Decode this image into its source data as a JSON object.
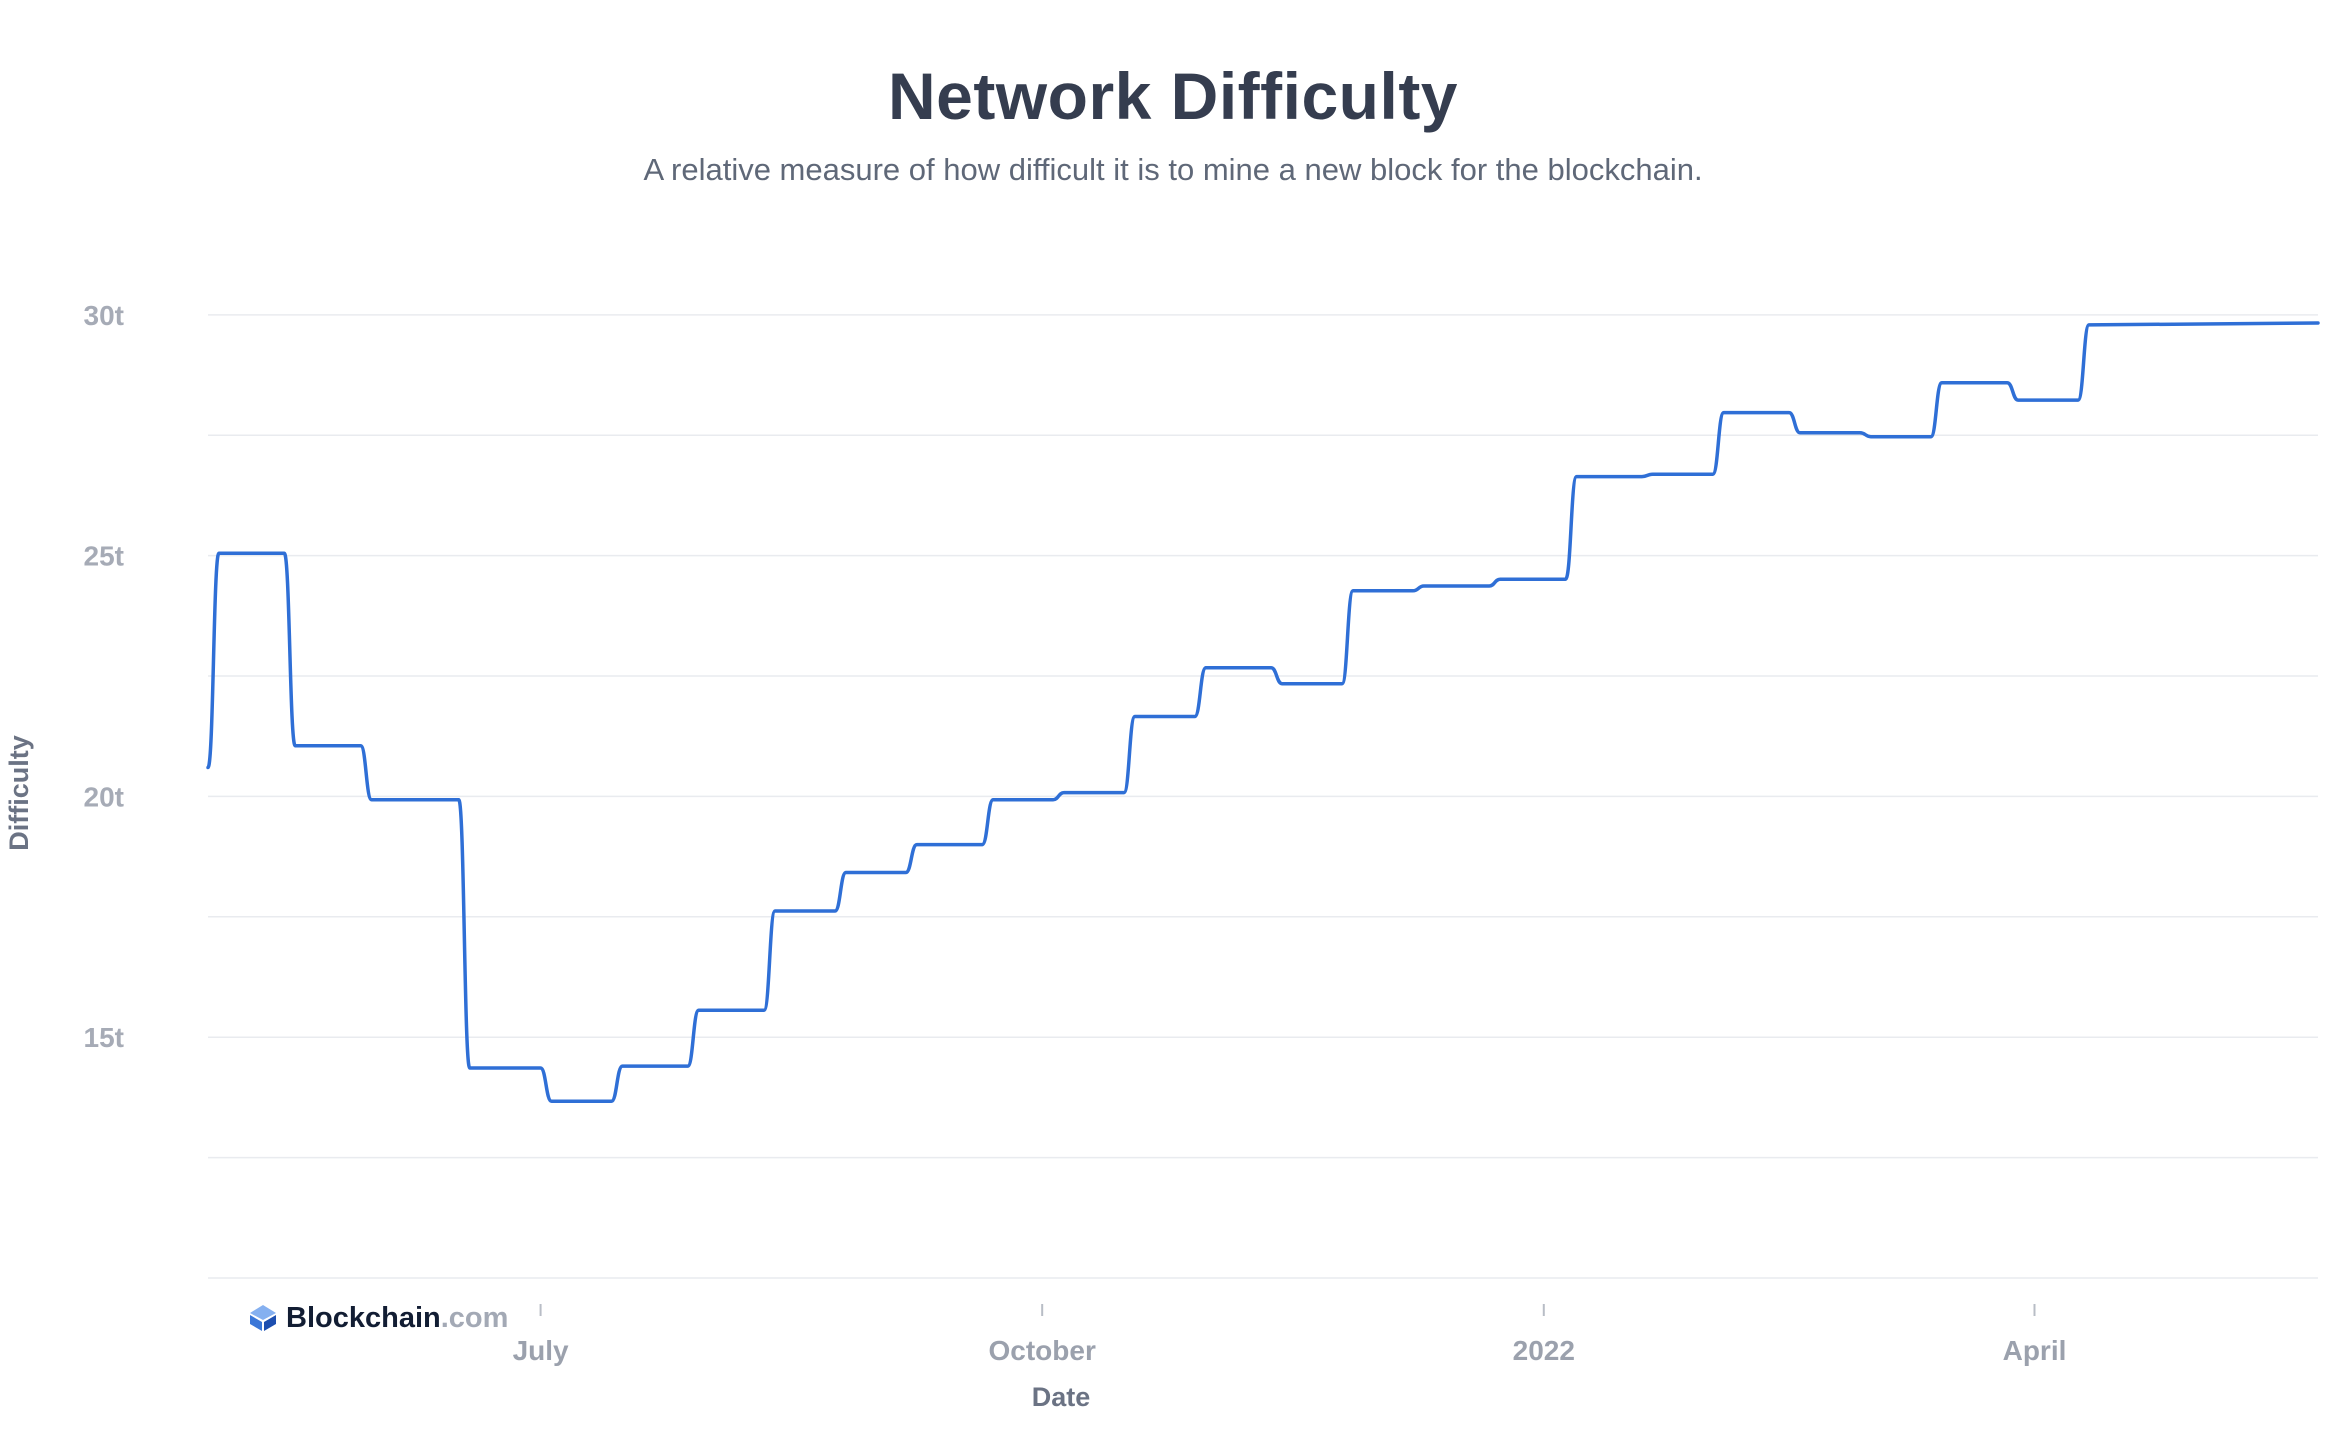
{
  "header": {
    "title": "Network Difficulty",
    "subtitle": "A relative measure of how difficult it is to mine a new block for the blockchain."
  },
  "brand": {
    "name": "Blockchain",
    "domain": ".com",
    "icon": "blockchain-logo-icon"
  },
  "colors": {
    "line": "#2f6fd6",
    "grid": "#e9ebef",
    "title": "#353d4f",
    "tick": "#a6abb6"
  },
  "chart_data": {
    "type": "line",
    "title": "Network Difficulty",
    "subtitle": "A relative measure of how difficult it is to mine a new block for the blockchain.",
    "xlabel": "Date",
    "ylabel": "Difficulty",
    "ylim": [
      10.0,
      30.1
    ],
    "yticks": [
      {
        "value": 15,
        "label": "15t"
      },
      {
        "value": 20,
        "label": "20t"
      },
      {
        "value": 25,
        "label": "25t"
      },
      {
        "value": 30,
        "label": "30t"
      }
    ],
    "xlim": [
      "2021-05-01",
      "2022-05-23"
    ],
    "xticks": [
      {
        "date": "2021-07-01",
        "label": "July"
      },
      {
        "date": "2021-10-01",
        "label": "October"
      },
      {
        "date": "2022-01-01",
        "label": "2022"
      },
      {
        "date": "2022-04-01",
        "label": "April"
      }
    ],
    "grid": true,
    "legend": "none",
    "series": [
      {
        "points": [
          [
            "2021-05-01",
            20.6
          ],
          [
            "2021-05-03",
            25.05
          ],
          [
            "2021-05-17",
            21.05
          ],
          [
            "2021-05-31",
            19.93
          ],
          [
            "2021-06-18",
            14.36
          ],
          [
            "2021-07-03",
            13.67
          ],
          [
            "2021-07-16",
            14.4
          ],
          [
            "2021-07-30",
            15.56
          ],
          [
            "2021-08-13",
            17.62
          ],
          [
            "2021-08-26",
            18.42
          ],
          [
            "2021-09-08",
            19.0
          ],
          [
            "2021-09-22",
            19.93
          ],
          [
            "2021-10-05",
            20.08
          ],
          [
            "2021-10-18",
            21.66
          ],
          [
            "2021-10-31",
            22.67
          ],
          [
            "2021-11-14",
            22.34
          ],
          [
            "2021-11-27",
            24.27
          ],
          [
            "2021-12-10",
            24.37
          ],
          [
            "2021-12-24",
            24.51
          ],
          [
            "2022-01-07",
            26.64
          ],
          [
            "2022-01-21",
            26.69
          ],
          [
            "2022-02-03",
            27.97
          ],
          [
            "2022-02-17",
            27.55
          ],
          [
            "2022-03-02",
            27.47
          ],
          [
            "2022-03-15",
            28.59
          ],
          [
            "2022-03-29",
            28.23
          ],
          [
            "2022-04-11",
            29.79
          ],
          [
            "2022-05-23",
            29.83
          ]
        ]
      }
    ]
  }
}
